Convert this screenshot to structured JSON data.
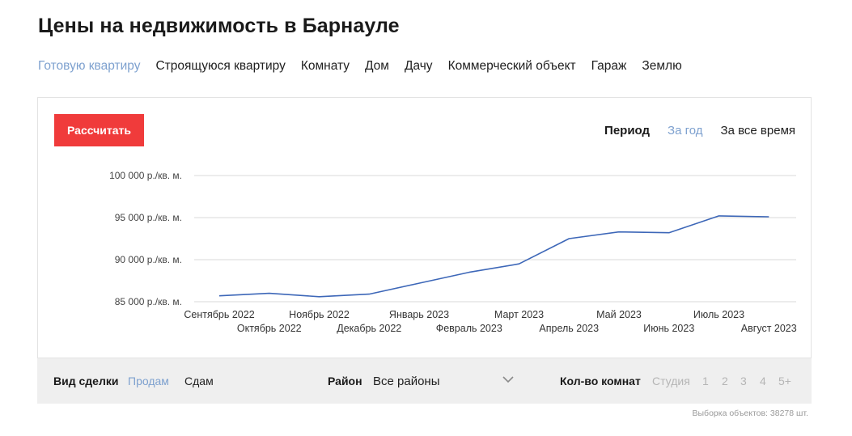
{
  "page": {
    "title": "Цены на недвижимость в Барнауле"
  },
  "property_types": [
    {
      "label": "Готовую квартиру",
      "active": true
    },
    {
      "label": "Строящуюся квартиру",
      "active": false
    },
    {
      "label": "Комнату",
      "active": false
    },
    {
      "label": "Дом",
      "active": false
    },
    {
      "label": "Дачу",
      "active": false
    },
    {
      "label": "Коммерческий объект",
      "active": false
    },
    {
      "label": "Гараж",
      "active": false
    },
    {
      "label": "Землю",
      "active": false
    }
  ],
  "chart_card": {
    "calc_button": "Рассчитать",
    "period": {
      "label": "Период",
      "options": [
        {
          "label": "За год",
          "active": true
        },
        {
          "label": "За все время",
          "active": false
        }
      ]
    }
  },
  "chart_data": {
    "type": "line",
    "title": "",
    "xlabel": "",
    "ylabel": "",
    "x": [
      "Сентябрь 2022",
      "Октябрь 2022",
      "Ноябрь 2022",
      "Декабрь 2022",
      "Январь 2023",
      "Февраль 2023",
      "Март 2023",
      "Апрель 2023",
      "Май 2023",
      "Июнь 2023",
      "Июль 2023",
      "Август 2023"
    ],
    "series": [
      {
        "values": [
          85700,
          86000,
          85600,
          85900,
          87200,
          88500,
          89500,
          92500,
          93300,
          93200,
          95200,
          95100
        ]
      }
    ],
    "ylim": [
      85000,
      100000
    ],
    "yticks": [
      85000,
      90000,
      95000,
      100000
    ],
    "ytick_labels": [
      "85 000 р./кв. м.",
      "90 000 р./кв. м.",
      "95 000 р./кв. м.",
      "100 000 р./кв. м."
    ],
    "grid": true,
    "line_color": "#3d67b8"
  },
  "filters": {
    "deal": {
      "label": "Вид сделки",
      "options": [
        {
          "label": "Продам",
          "active": true
        },
        {
          "label": "Сдам",
          "active": false
        }
      ]
    },
    "district": {
      "label": "Район",
      "value": "Все районы"
    },
    "rooms": {
      "label": "Кол-во комнат",
      "options": [
        "Студия",
        "1",
        "2",
        "3",
        "4",
        "5+"
      ]
    }
  },
  "sample_count": "Выборка объектов: 38278 шт."
}
